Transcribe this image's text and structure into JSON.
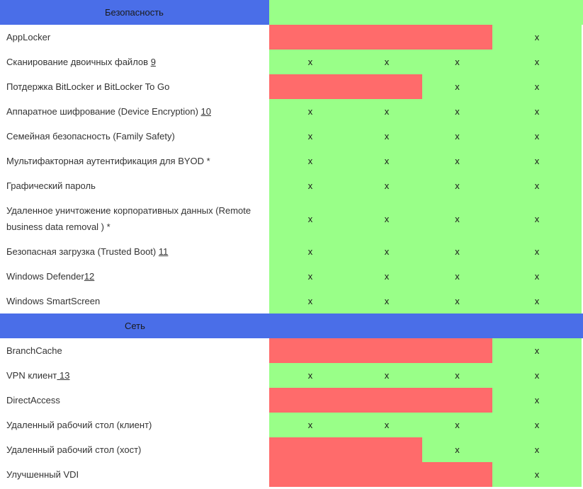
{
  "colors": {
    "header_blue": "#4a6ee8",
    "yes_green": "#99ff88",
    "no_red": "#ff6b6b"
  },
  "check_mark": "x",
  "sections": [
    {
      "title": "Безопасность",
      "rows": [
        {
          "label": "AppLocker",
          "note": "",
          "cells": [
            false,
            false,
            false,
            true
          ]
        },
        {
          "label": "Сканирование двоичных файлов ",
          "note": "9",
          "cells": [
            true,
            true,
            true,
            true
          ]
        },
        {
          "label": "Потдержка BitLocker и BitLocker To Go",
          "note": "",
          "cells": [
            false,
            false,
            true,
            true
          ]
        },
        {
          "label": "Аппаратное шифрование (Device Encryption) ",
          "note": "10",
          "cells": [
            true,
            true,
            true,
            true
          ]
        },
        {
          "label": "Семейная безопасность (Family Safety)",
          "note": "",
          "cells": [
            true,
            true,
            true,
            true
          ]
        },
        {
          "label": "Мультифакторная аутентификация для BYOD *",
          "note": "",
          "cells": [
            true,
            true,
            true,
            true
          ]
        },
        {
          "label": "Графический пароль",
          "note": "",
          "cells": [
            true,
            true,
            true,
            true
          ]
        },
        {
          "label": "Удаленное уничтожение корпоративных данных (Remote business data removal ) *",
          "note": "",
          "cells": [
            true,
            true,
            true,
            true
          ],
          "tall": true
        },
        {
          "label": "Безопасная загрузка (Trusted Boot) ",
          "note": "11",
          "cells": [
            true,
            true,
            true,
            true
          ]
        },
        {
          "label": "Windows Defender",
          "note": "12",
          "cells": [
            true,
            true,
            true,
            true
          ]
        },
        {
          "label": "Windows SmartScreen",
          "note": "",
          "cells": [
            true,
            true,
            true,
            true
          ]
        }
      ]
    },
    {
      "title": "Сеть",
      "rows": [
        {
          "label": "BranchCache",
          "note": "",
          "cells": [
            false,
            false,
            false,
            true
          ]
        },
        {
          "label": "VPN клиент",
          "note": " 13",
          "cells": [
            true,
            true,
            true,
            true
          ]
        },
        {
          "label": "DirectAccess",
          "note": "",
          "cells": [
            false,
            false,
            false,
            true
          ]
        },
        {
          "label": "Удаленный рабочий стол (клиент)",
          "note": "",
          "cells": [
            true,
            true,
            true,
            true
          ]
        },
        {
          "label": "Удаленный рабочий стол (хост)",
          "note": "",
          "cells": [
            false,
            false,
            true,
            true
          ]
        },
        {
          "label": "Улучшенный VDI",
          "note": "",
          "cells": [
            false,
            false,
            false,
            true
          ]
        }
      ]
    }
  ]
}
